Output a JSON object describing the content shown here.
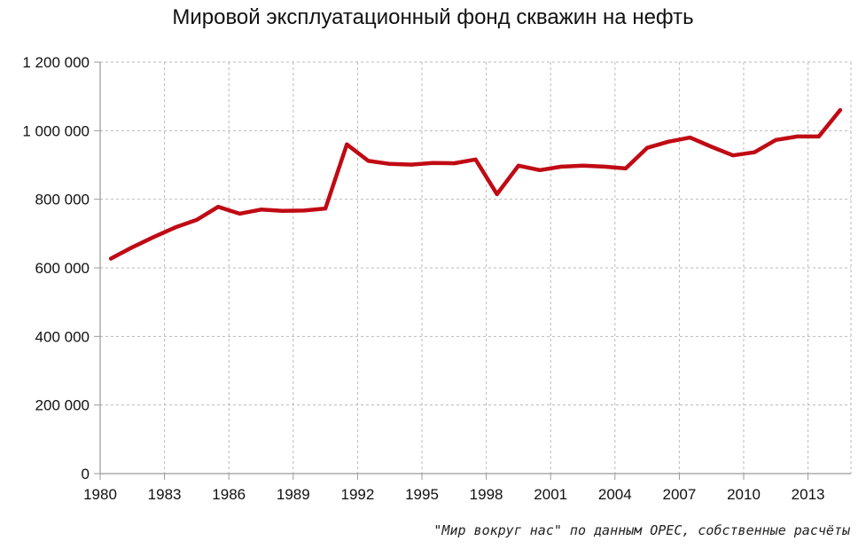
{
  "chart_data": {
    "type": "line",
    "title": "Мировой эксплуатационный фонд скважин на нефть",
    "source": "\"Мир вокруг нас\" по данным OPEC, собственные расчёты",
    "x_ticks": [
      "1980",
      "1983",
      "1986",
      "1989",
      "1992",
      "1995",
      "1998",
      "2001",
      "2004",
      "2007",
      "2010",
      "2013"
    ],
    "y_ticks": [
      "0",
      "200 000",
      "400 000",
      "600 000",
      "800 000",
      "1 000 000",
      "1 200 000"
    ],
    "xlim": [
      1980,
      2015
    ],
    "ylim": [
      0,
      1200000
    ],
    "grid": true,
    "line_color": "#c00a14",
    "x": [
      1980.5,
      1981.5,
      1982.5,
      1983.5,
      1984.5,
      1985.5,
      1986.5,
      1987.5,
      1988.5,
      1989.5,
      1990.5,
      1991.5,
      1992.5,
      1993.5,
      1994.5,
      1995.5,
      1996.5,
      1997.5,
      1998.5,
      1999.5,
      2000.5,
      2001.5,
      2002.5,
      2003.5,
      2004.5,
      2005.5,
      2006.5,
      2007.5,
      2008.5,
      2009.5,
      2010.5,
      2011.5,
      2012.5,
      2013.5,
      2014.5
    ],
    "series": [
      {
        "values": [
          627000,
          660000,
          690000,
          718000,
          740000,
          778000,
          758000,
          770000,
          766000,
          767000,
          773000,
          960000,
          912000,
          903000,
          901000,
          906000,
          905000,
          916000,
          815000,
          898000,
          885000,
          895000,
          898000,
          895000,
          890000,
          950000,
          968000,
          980000,
          953000,
          928000,
          937000,
          973000,
          983000,
          983000,
          1060000
        ]
      }
    ]
  }
}
